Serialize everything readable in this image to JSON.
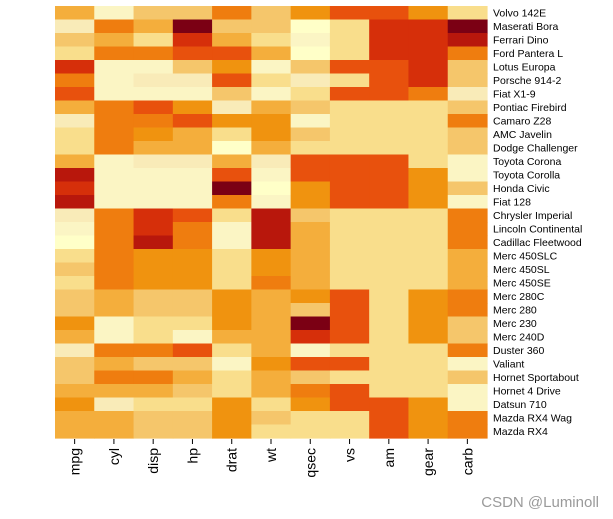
{
  "watermark": "CSDN @Luminoll",
  "colors": {
    "palette": [
      "#FFFFC8",
      "#FBF5C4",
      "#F9EBB8",
      "#F9DE8C",
      "#F5C66B",
      "#F4AE3C",
      "#F0930F",
      "#EF7D0F",
      "#E8510D",
      "#D62F0A",
      "#B8170C",
      "#7B0014"
    ]
  },
  "chart_data": {
    "type": "heatmap",
    "columns": [
      "mpg",
      "cyl",
      "disp",
      "hp",
      "drat",
      "wt",
      "qsec",
      "vs",
      "am",
      "gear",
      "carb"
    ],
    "rows": [
      "Volvo 142E",
      "Maserati Bora",
      "Ferrari Dino",
      "Ford Pantera L",
      "Lotus Europa",
      "Porsche 914-2",
      "Fiat X1-9",
      "Pontiac Firebird",
      "Camaro Z28",
      "AMC Javelin",
      "Dodge Challenger",
      "Toyota Corona",
      "Toyota Corolla",
      "Honda Civic",
      "Fiat 128",
      "Chrysler Imperial",
      "Lincoln Continental",
      "Cadillac Fleetwood",
      "Merc 450SLC",
      "Merc 450SL",
      "Merc 450SE",
      "Merc 280C",
      "Merc 280",
      "Merc 230",
      "Merc 240D",
      "Duster 360",
      "Valiant",
      "Hornet Sportabout",
      "Hornet 4 Drive",
      "Datsun 710",
      "Mazda RX4 Wag",
      "Mazda RX4"
    ],
    "values": [
      [
        5,
        1,
        4,
        4,
        7,
        4,
        6,
        8,
        8,
        6,
        3
      ],
      [
        2,
        7,
        5,
        11,
        4,
        4,
        0,
        3,
        9,
        9,
        11
      ],
      [
        4,
        5,
        3,
        9,
        5,
        3,
        1,
        3,
        9,
        9,
        10
      ],
      [
        3,
        7,
        7,
        8,
        8,
        5,
        0,
        3,
        9,
        9,
        7
      ],
      [
        9,
        1,
        1,
        4,
        6,
        1,
        4,
        8,
        8,
        9,
        4
      ],
      [
        7,
        1,
        2,
        2,
        8,
        3,
        2,
        3,
        8,
        9,
        4
      ],
      [
        8,
        1,
        1,
        1,
        4,
        1,
        3,
        8,
        8,
        7,
        2
      ],
      [
        5,
        7,
        8,
        6,
        2,
        5,
        4,
        3,
        3,
        3,
        4
      ],
      [
        2,
        7,
        7,
        8,
        6,
        6,
        1,
        3,
        3,
        3,
        7
      ],
      [
        3,
        7,
        6,
        5,
        3,
        6,
        4,
        3,
        3,
        3,
        4
      ],
      [
        3,
        7,
        5,
        5,
        0,
        5,
        3,
        3,
        3,
        3,
        4
      ],
      [
        5,
        1,
        2,
        2,
        5,
        2,
        8,
        8,
        8,
        3,
        1
      ],
      [
        10,
        1,
        1,
        1,
        8,
        1,
        8,
        8,
        8,
        6,
        1
      ],
      [
        9,
        1,
        1,
        1,
        11,
        0,
        6,
        8,
        8,
        6,
        4
      ],
      [
        10,
        1,
        1,
        1,
        7,
        1,
        6,
        8,
        8,
        6,
        1
      ],
      [
        2,
        7,
        9,
        8,
        3,
        10,
        4,
        3,
        3,
        3,
        7
      ],
      [
        1,
        7,
        9,
        7,
        1,
        10,
        5,
        3,
        3,
        3,
        7
      ],
      [
        0,
        7,
        10,
        7,
        1,
        10,
        5,
        3,
        3,
        3,
        7
      ],
      [
        3,
        7,
        6,
        6,
        3,
        6,
        5,
        3,
        3,
        3,
        5
      ],
      [
        4,
        7,
        6,
        6,
        3,
        6,
        5,
        3,
        3,
        3,
        5
      ],
      [
        3,
        7,
        6,
        6,
        3,
        7,
        5,
        3,
        3,
        3,
        5
      ],
      [
        4,
        5,
        4,
        4,
        6,
        5,
        6,
        8,
        3,
        6,
        7
      ],
      [
        4,
        5,
        4,
        4,
        6,
        5,
        4,
        8,
        3,
        6,
        7
      ],
      [
        6,
        1,
        3,
        3,
        6,
        5,
        11,
        8,
        3,
        6,
        4
      ],
      [
        5,
        1,
        3,
        1,
        5,
        5,
        9,
        8,
        3,
        6,
        4
      ],
      [
        2,
        7,
        7,
        8,
        3,
        5,
        1,
        3,
        3,
        3,
        7
      ],
      [
        4,
        5,
        4,
        4,
        1,
        6,
        8,
        8,
        3,
        3,
        1
      ],
      [
        4,
        7,
        7,
        5,
        3,
        5,
        4,
        3,
        3,
        3,
        4
      ],
      [
        5,
        5,
        5,
        4,
        3,
        5,
        7,
        8,
        3,
        3,
        1
      ],
      [
        6,
        2,
        3,
        3,
        6,
        3,
        6,
        8,
        8,
        6,
        1
      ],
      [
        5,
        5,
        4,
        4,
        6,
        4,
        3,
        3,
        8,
        6,
        7
      ],
      [
        5,
        5,
        4,
        4,
        6,
        3,
        3,
        3,
        8,
        6,
        7
      ]
    ]
  }
}
